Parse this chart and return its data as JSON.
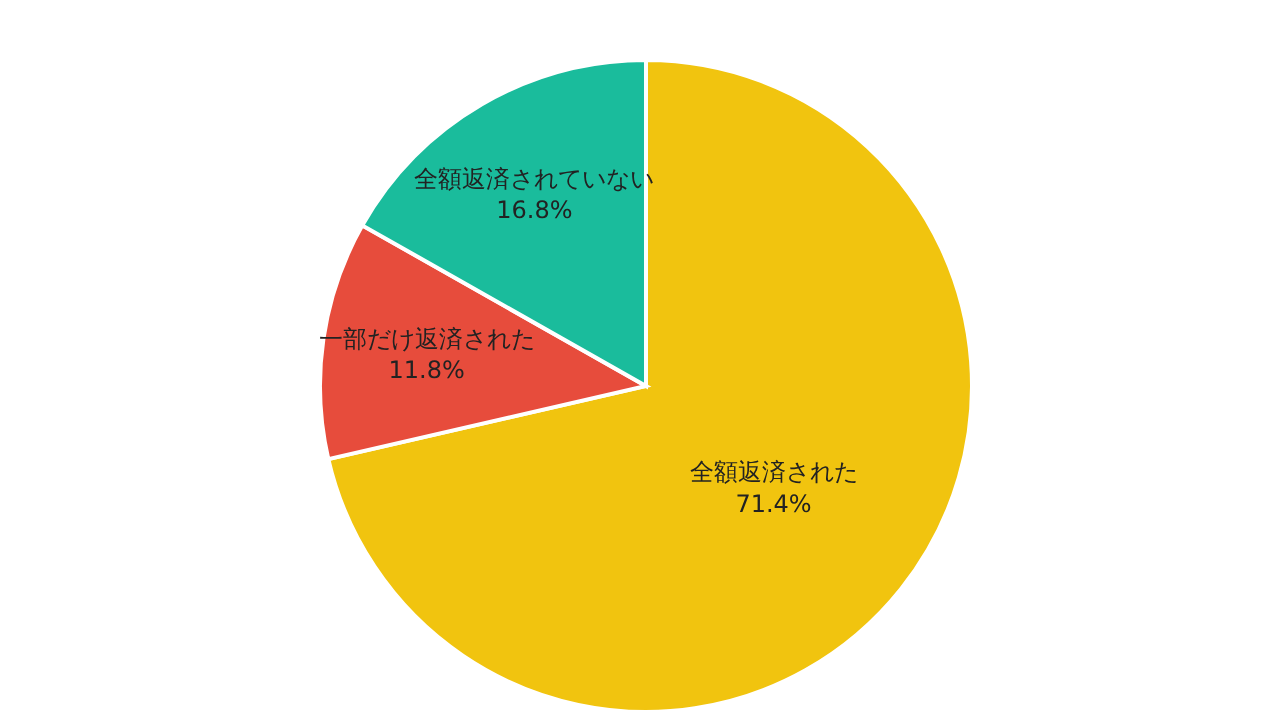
{
  "chart_data": {
    "type": "pie",
    "categories": [
      "全額返済された",
      "一部だけ返済された",
      "全額返済されていない"
    ],
    "values": [
      71.4,
      11.8,
      16.8
    ],
    "colors": [
      "#f1c40f",
      "#e74c3c",
      "#1abc9c"
    ],
    "value_labels": [
      "71.4%",
      "11.8%",
      "16.8%"
    ]
  }
}
